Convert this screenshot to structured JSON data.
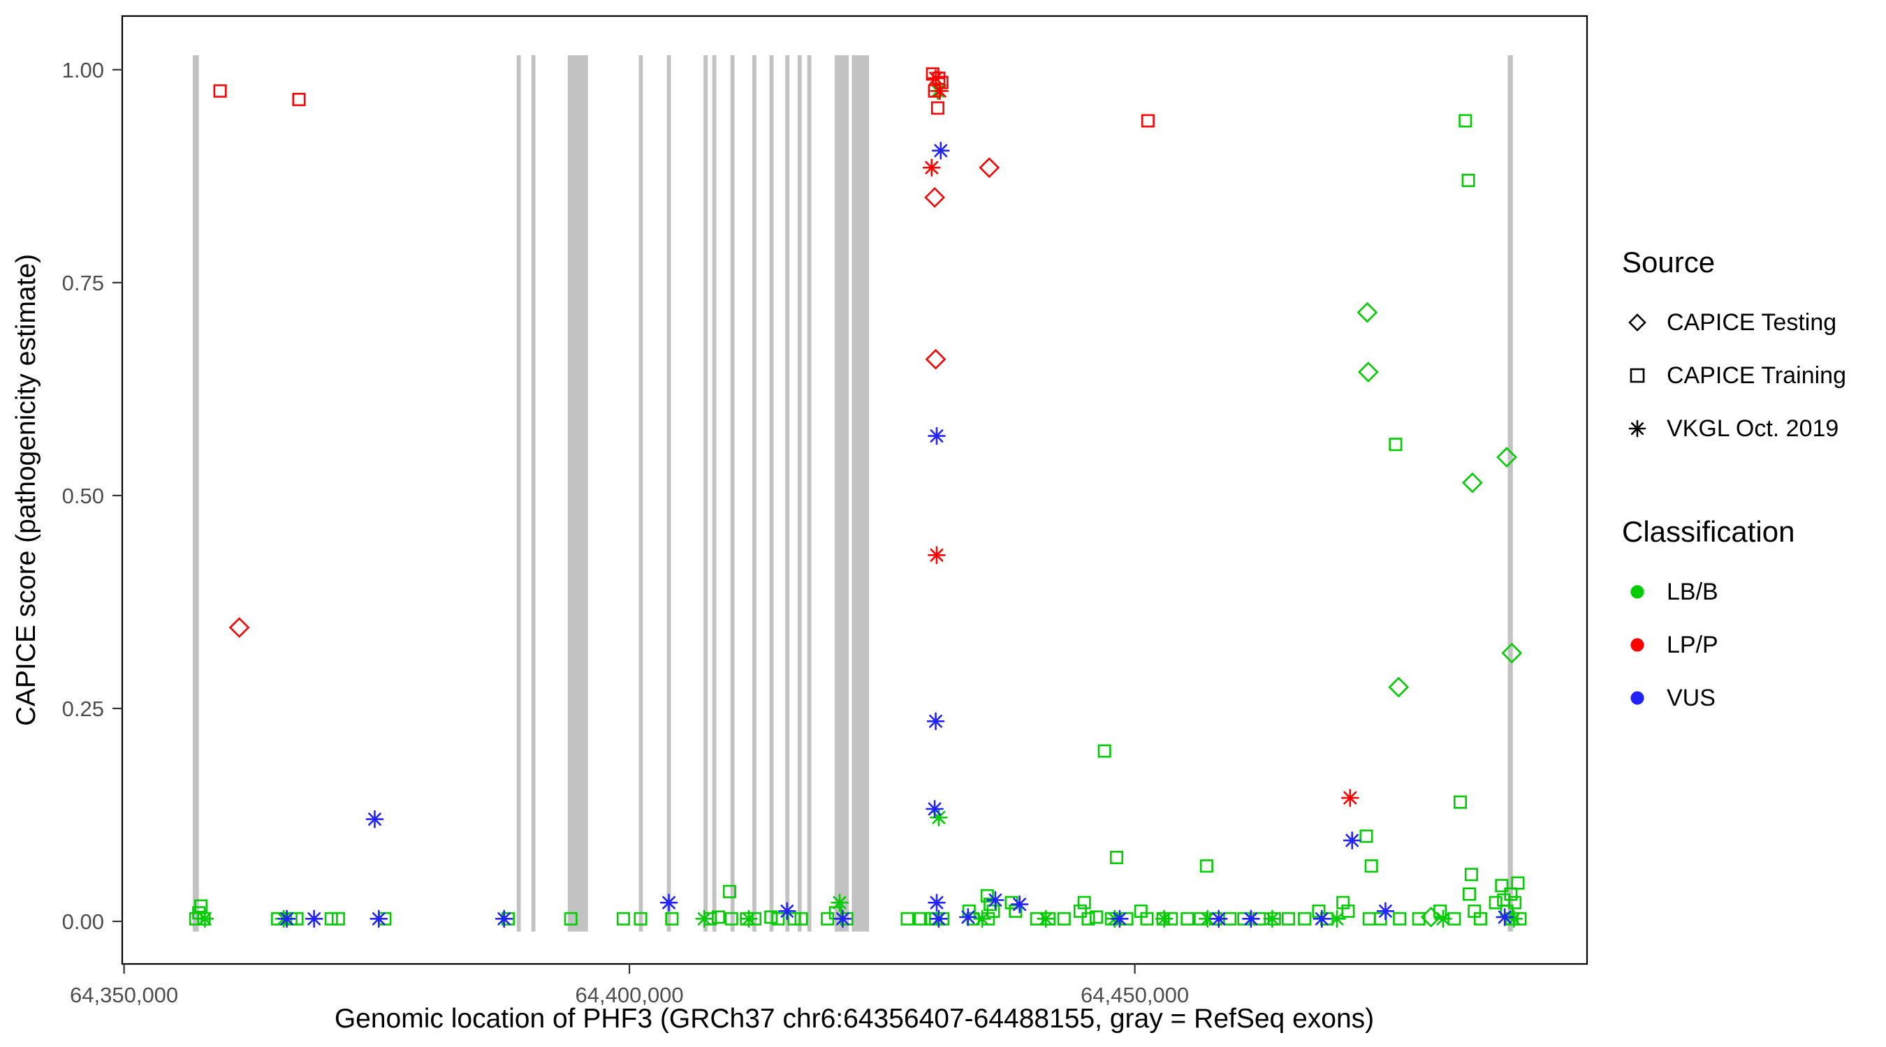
{
  "chart_data": {
    "type": "scatter",
    "title": "",
    "xlabel": "Genomic location of PHF3 (GRCh37 chr6:64356407-64488155, gray = RefSeq exons)",
    "ylabel": "CAPICE score (pathogenicity estimate)",
    "xlim": [
      64349820,
      64494742
    ],
    "ylim": [
      -0.05,
      1.063
    ],
    "grid": false,
    "x_ticks": [
      {
        "value": 64350000,
        "label": "64,350,000"
      },
      {
        "value": 64400000,
        "label": "64,400,000"
      },
      {
        "value": 64450000,
        "label": "64,450,000"
      }
    ],
    "y_ticks": [
      {
        "value": 0.0,
        "label": "0.00"
      },
      {
        "value": 0.25,
        "label": "0.25"
      },
      {
        "value": 0.5,
        "label": "0.50"
      },
      {
        "value": 0.75,
        "label": "0.75"
      },
      {
        "value": 1.0,
        "label": "1.00"
      }
    ],
    "exon_color": "#c2c2c2",
    "exons": [
      [
        64356800,
        64357400
      ],
      [
        64388850,
        64389250
      ],
      [
        64390300,
        64390700
      ],
      [
        64393900,
        64395900
      ],
      [
        64400930,
        64401330
      ],
      [
        64403700,
        64404100
      ],
      [
        64407330,
        64407730
      ],
      [
        64408200,
        64408600
      ],
      [
        64410000,
        64410400
      ],
      [
        64412160,
        64412560
      ],
      [
        64413860,
        64414260
      ],
      [
        64415430,
        64415830
      ],
      [
        64416640,
        64417040
      ],
      [
        64417600,
        64418000
      ],
      [
        64420300,
        64421700
      ],
      [
        64422000,
        64423700
      ],
      [
        64486900,
        64487400
      ]
    ],
    "legend": {
      "source": {
        "title": "Source",
        "items": [
          {
            "label": "CAPICE Testing",
            "marker": "diamond"
          },
          {
            "label": "CAPICE Training",
            "marker": "square"
          },
          {
            "label": "VKGL Oct. 2019",
            "marker": "asterisk"
          }
        ]
      },
      "classification": {
        "title": "Classification",
        "items": [
          {
            "label": "LB/B",
            "color": "#00cc00"
          },
          {
            "label": "LP/P",
            "color": "#ff0000"
          },
          {
            "label": "VUS",
            "color": "#2222ff"
          }
        ]
      }
    },
    "series": [
      {
        "name": "LB/B CAPICE Training",
        "source": "CAPICE Training",
        "classification": "LB/B",
        "marker": "square",
        "color": "#00cc00",
        "points": [
          [
            64447000,
            0.2
          ],
          [
            64448200,
            0.075
          ],
          [
            64457100,
            0.065
          ],
          [
            64475800,
            0.56
          ],
          [
            64472900,
            0.1
          ],
          [
            64473400,
            0.065
          ],
          [
            64482700,
            0.94
          ],
          [
            64483000,
            0.87
          ],
          [
            64482200,
            0.14
          ],
          [
            64483300,
            0.055
          ],
          [
            64409900,
            0.035
          ],
          [
            64435400,
            0.03
          ],
          [
            64435700,
            0.02
          ],
          [
            64436000,
            0.012
          ],
          [
            64486300,
            0.042
          ],
          [
            64487200,
            0.032
          ],
          [
            64486500,
            0.025
          ],
          [
            64357100,
            0.003
          ],
          [
            64357400,
            0.01
          ],
          [
            64357600,
            0.018
          ],
          [
            64357900,
            0.003
          ],
          [
            64365200,
            0.003
          ],
          [
            64366500,
            0.003
          ],
          [
            64367100,
            0.003
          ],
          [
            64370500,
            0.003
          ],
          [
            64371200,
            0.003
          ],
          [
            64375800,
            0.003
          ],
          [
            64388000,
            0.003
          ],
          [
            64394200,
            0.003
          ],
          [
            64399400,
            0.003
          ],
          [
            64401100,
            0.003
          ],
          [
            64404200,
            0.003
          ],
          [
            64408000,
            0.003
          ],
          [
            64408800,
            0.005
          ],
          [
            64410100,
            0.003
          ],
          [
            64411600,
            0.003
          ],
          [
            64412400,
            0.003
          ],
          [
            64414000,
            0.005
          ],
          [
            64414700,
            0.003
          ],
          [
            64416300,
            0.003
          ],
          [
            64417000,
            0.003
          ],
          [
            64419600,
            0.003
          ],
          [
            64420400,
            0.01
          ],
          [
            64421500,
            0.003
          ],
          [
            64427500,
            0.003
          ],
          [
            64428800,
            0.003
          ],
          [
            64429800,
            0.003
          ],
          [
            64430300,
            0.003
          ],
          [
            64431000,
            0.003
          ],
          [
            64433600,
            0.012
          ],
          [
            64434000,
            0.003
          ],
          [
            64435500,
            0.003
          ],
          [
            64437800,
            0.022
          ],
          [
            64438200,
            0.012
          ],
          [
            64440300,
            0.003
          ],
          [
            64441500,
            0.003
          ],
          [
            64443000,
            0.003
          ],
          [
            64444600,
            0.012
          ],
          [
            64445000,
            0.022
          ],
          [
            64445400,
            0.003
          ],
          [
            64446200,
            0.005
          ],
          [
            64447700,
            0.003
          ],
          [
            64449200,
            0.003
          ],
          [
            64450600,
            0.012
          ],
          [
            64451200,
            0.003
          ],
          [
            64452800,
            0.003
          ],
          [
            64453600,
            0.003
          ],
          [
            64455200,
            0.003
          ],
          [
            64456500,
            0.003
          ],
          [
            64458000,
            0.003
          ],
          [
            64459400,
            0.003
          ],
          [
            64460800,
            0.003
          ],
          [
            64462300,
            0.003
          ],
          [
            64463800,
            0.003
          ],
          [
            64465200,
            0.003
          ],
          [
            64466800,
            0.003
          ],
          [
            64468200,
            0.012
          ],
          [
            64469000,
            0.003
          ],
          [
            64470600,
            0.022
          ],
          [
            64471100,
            0.012
          ],
          [
            64473200,
            0.003
          ],
          [
            64474300,
            0.003
          ],
          [
            64476200,
            0.003
          ],
          [
            64478100,
            0.003
          ],
          [
            64480200,
            0.012
          ],
          [
            64481600,
            0.003
          ],
          [
            64483100,
            0.032
          ],
          [
            64483600,
            0.012
          ],
          [
            64484200,
            0.003
          ],
          [
            64485700,
            0.022
          ],
          [
            64486800,
            0.012
          ],
          [
            64487300,
            0.003
          ],
          [
            64487600,
            0.022
          ],
          [
            64487900,
            0.045
          ],
          [
            64488100,
            0.003
          ]
        ]
      },
      {
        "name": "LB/B VKGL Oct. 2019",
        "source": "VKGL Oct. 2019",
        "classification": "LB/B",
        "marker": "asterisk",
        "color": "#00cc00",
        "points": [
          [
            64430500,
            0.975
          ],
          [
            64430600,
            0.122
          ],
          [
            64420800,
            0.022
          ],
          [
            64358000,
            0.003
          ],
          [
            64365800,
            0.003
          ],
          [
            64407400,
            0.003
          ],
          [
            64411800,
            0.003
          ],
          [
            64434900,
            0.003
          ],
          [
            64441200,
            0.003
          ],
          [
            64448000,
            0.003
          ],
          [
            64452900,
            0.003
          ],
          [
            64457200,
            0.003
          ],
          [
            64463600,
            0.003
          ],
          [
            64470000,
            0.003
          ],
          [
            64480500,
            0.003
          ],
          [
            64487500,
            0.003
          ]
        ]
      },
      {
        "name": "LB/B CAPICE Testing",
        "source": "CAPICE Testing",
        "classification": "LB/B",
        "marker": "diamond",
        "color": "#00cc00",
        "points": [
          [
            64473000,
            0.715
          ],
          [
            64473100,
            0.645
          ],
          [
            64476100,
            0.275
          ],
          [
            64483400,
            0.515
          ],
          [
            64486800,
            0.545
          ],
          [
            64487300,
            0.315
          ],
          [
            64479300,
            0.005
          ]
        ]
      },
      {
        "name": "VUS VKGL Oct. 2019",
        "source": "VKGL Oct. 2019",
        "classification": "VUS",
        "marker": "asterisk",
        "color": "#2222ff",
        "points": [
          [
            64430800,
            0.905
          ],
          [
            64430400,
            0.57
          ],
          [
            64430300,
            0.235
          ],
          [
            64430200,
            0.132
          ],
          [
            64374800,
            0.12
          ],
          [
            64471500,
            0.095
          ],
          [
            64366100,
            0.003
          ],
          [
            64368800,
            0.003
          ],
          [
            64375200,
            0.003
          ],
          [
            64387600,
            0.003
          ],
          [
            64403900,
            0.022
          ],
          [
            64415600,
            0.012
          ],
          [
            64421100,
            0.003
          ],
          [
            64430400,
            0.022
          ],
          [
            64430600,
            0.003
          ],
          [
            64433500,
            0.005
          ],
          [
            64436200,
            0.025
          ],
          [
            64438600,
            0.02
          ],
          [
            64448500,
            0.003
          ],
          [
            64458300,
            0.003
          ],
          [
            64461500,
            0.003
          ],
          [
            64468500,
            0.003
          ],
          [
            64474800,
            0.012
          ],
          [
            64486600,
            0.005
          ]
        ]
      },
      {
        "name": "LP/P CAPICE Training",
        "source": "CAPICE Training",
        "classification": "LP/P",
        "marker": "square",
        "color": "#ff0000",
        "points": [
          [
            64359500,
            0.975
          ],
          [
            64367300,
            0.965
          ],
          [
            64430000,
            0.995
          ],
          [
            64430600,
            0.99
          ],
          [
            64430900,
            0.985
          ],
          [
            64430200,
            0.975
          ],
          [
            64430500,
            0.955
          ],
          [
            64451300,
            0.94
          ]
        ]
      },
      {
        "name": "LP/P CAPICE Testing",
        "source": "CAPICE Testing",
        "classification": "LP/P",
        "marker": "diamond",
        "color": "#ff0000",
        "points": [
          [
            64361400,
            0.345
          ],
          [
            64430200,
            0.85
          ],
          [
            64430300,
            0.66
          ],
          [
            64435600,
            0.885
          ]
        ]
      },
      {
        "name": "LP/P VKGL Oct. 2019",
        "source": "VKGL Oct. 2019",
        "classification": "LP/P",
        "marker": "asterisk",
        "color": "#ff0000",
        "points": [
          [
            64430300,
            0.99
          ],
          [
            64430700,
            0.975
          ],
          [
            64429900,
            0.885
          ],
          [
            64430400,
            0.43
          ],
          [
            64471300,
            0.145
          ]
        ]
      }
    ]
  }
}
